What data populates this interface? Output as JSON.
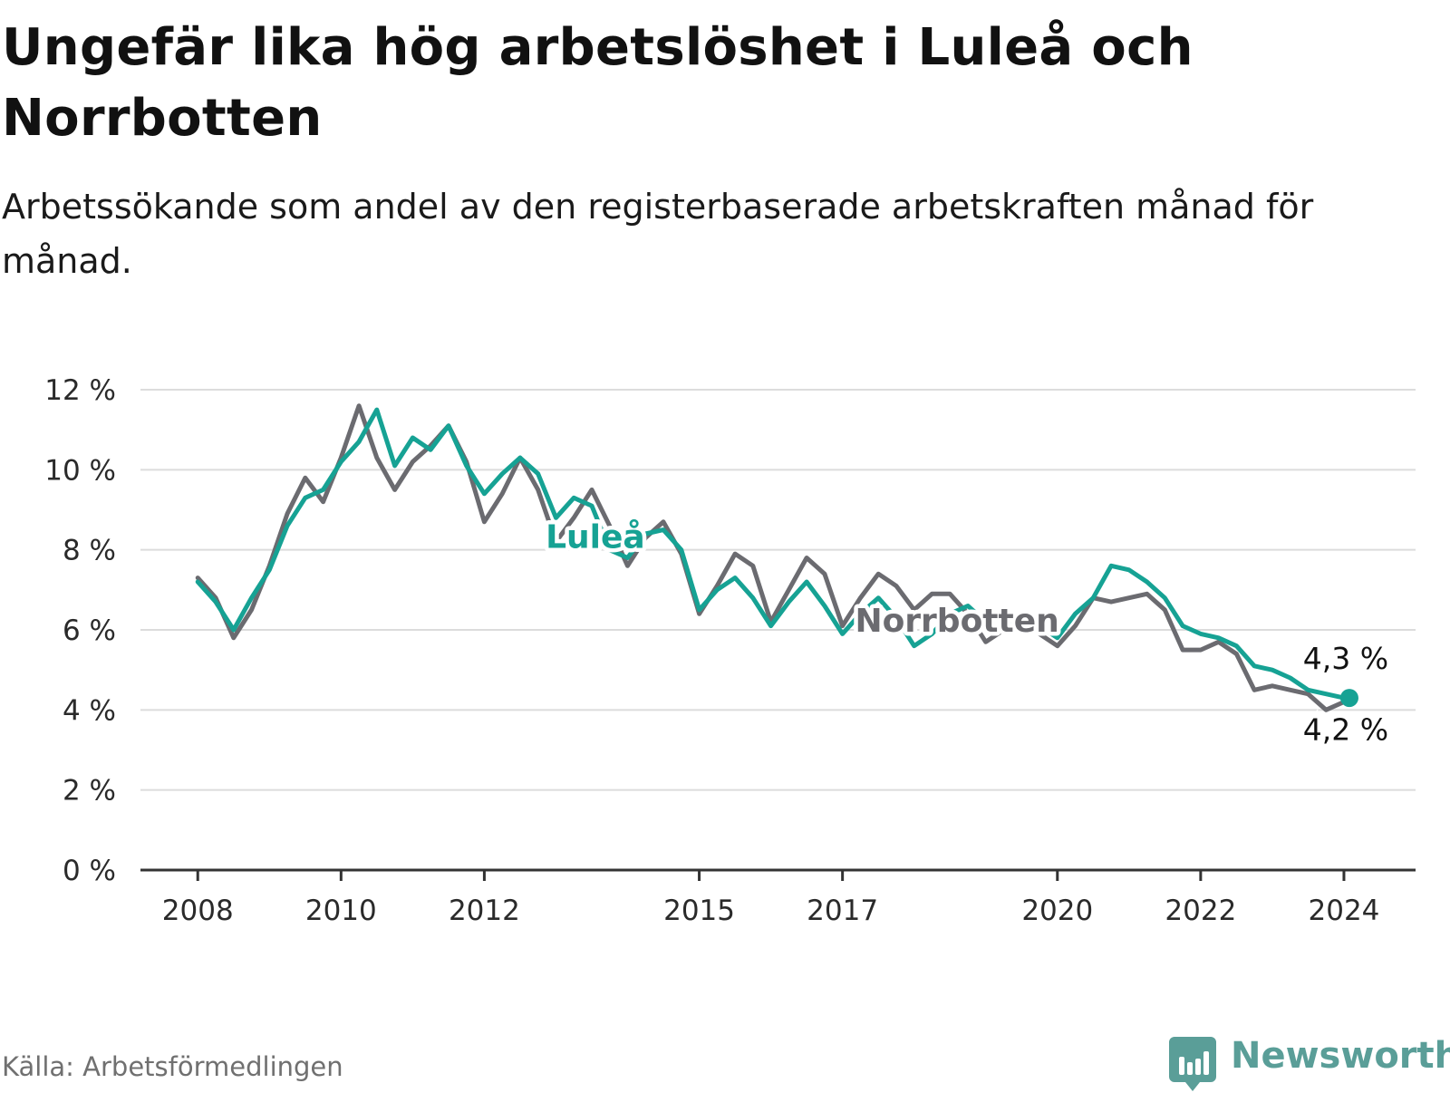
{
  "title": "Ungefär lika hög arbetslöshet i Luleå och Norrbotten",
  "subtitle": "Arbetssökande som andel av den registerbaserade arbetskraften månad för månad.",
  "source": "Källa: Arbetsförmedlingen",
  "brand": "Newsworthy",
  "colors": {
    "lulea": "#16a294",
    "norrbotten": "#6b6b70",
    "grid": "#dcdcdc",
    "axis": "#333333"
  },
  "chart_data": {
    "type": "line",
    "title": "Ungefär lika hög arbetslöshet i Luleå och Norrbotten",
    "xlabel": "",
    "ylabel": "",
    "ylim": [
      0,
      12
    ],
    "xlim": [
      2007.2,
      2025.0
    ],
    "y_ticks": [
      0,
      2,
      4,
      6,
      8,
      10,
      12
    ],
    "y_tick_labels": [
      "0 %",
      "2 %",
      "4 %",
      "6 %",
      "8 %",
      "10 %",
      "12 %"
    ],
    "x_ticks": [
      2008,
      2010,
      2012,
      2015,
      2017,
      2020,
      2022,
      2024
    ],
    "x_tick_labels": [
      "2008",
      "2010",
      "2012",
      "2015",
      "2017",
      "2020",
      "2022",
      "2024"
    ],
    "x": [
      2008.0,
      2008.25,
      2008.5,
      2008.75,
      2009.0,
      2009.25,
      2009.5,
      2009.75,
      2010.0,
      2010.25,
      2010.5,
      2010.75,
      2011.0,
      2011.25,
      2011.5,
      2011.75,
      2012.0,
      2012.25,
      2012.5,
      2012.75,
      2013.0,
      2013.25,
      2013.5,
      2013.75,
      2014.0,
      2014.25,
      2014.5,
      2014.75,
      2015.0,
      2015.25,
      2015.5,
      2015.75,
      2016.0,
      2016.25,
      2016.5,
      2016.75,
      2017.0,
      2017.25,
      2017.5,
      2017.75,
      2018.0,
      2018.25,
      2018.5,
      2018.75,
      2019.0,
      2019.25,
      2019.5,
      2019.75,
      2020.0,
      2020.25,
      2020.5,
      2020.75,
      2021.0,
      2021.25,
      2021.5,
      2021.75,
      2022.0,
      2022.25,
      2022.5,
      2022.75,
      2023.0,
      2023.25,
      2023.5,
      2023.75,
      2024.0
    ],
    "series": [
      {
        "name": "Luleå",
        "values": [
          7.2,
          6.7,
          6.0,
          6.8,
          7.5,
          8.6,
          9.3,
          9.5,
          10.2,
          10.7,
          11.5,
          10.1,
          10.8,
          10.5,
          11.1,
          10.1,
          9.4,
          9.9,
          10.3,
          9.9,
          8.8,
          9.3,
          9.1,
          8.0,
          7.8,
          8.4,
          8.5,
          8.0,
          6.5,
          7.0,
          7.3,
          6.8,
          6.1,
          6.7,
          7.2,
          6.6,
          5.9,
          6.4,
          6.8,
          6.3,
          5.6,
          5.9,
          6.4,
          6.6,
          6.2,
          6.0,
          6.4,
          6.1,
          5.8,
          6.4,
          6.8,
          7.6,
          7.5,
          7.2,
          6.8,
          6.1,
          5.9,
          5.8,
          5.6,
          5.1,
          5.0,
          4.8,
          4.5,
          4.4,
          4.3
        ]
      },
      {
        "name": "Norrbotten",
        "values": [
          7.3,
          6.8,
          5.8,
          6.5,
          7.6,
          8.9,
          9.8,
          9.2,
          10.3,
          11.6,
          10.3,
          9.5,
          10.2,
          10.6,
          11.1,
          10.2,
          8.7,
          9.4,
          10.3,
          9.5,
          8.2,
          8.8,
          9.5,
          8.6,
          7.6,
          8.3,
          8.7,
          7.9,
          6.4,
          7.1,
          7.9,
          7.6,
          6.2,
          7.0,
          7.8,
          7.4,
          6.1,
          6.8,
          7.4,
          7.1,
          6.5,
          6.9,
          6.9,
          6.4,
          5.7,
          6.0,
          6.4,
          5.9,
          5.6,
          6.1,
          6.8,
          6.7,
          6.8,
          6.9,
          6.5,
          5.5,
          5.5,
          5.7,
          5.4,
          4.5,
          4.6,
          4.5,
          4.4,
          4.0,
          4.2
        ]
      }
    ],
    "line_labels": [
      {
        "series": "Luleå",
        "text": "Luleå"
      },
      {
        "series": "Norrbotten",
        "text": "Norrbotten"
      }
    ],
    "end_labels": [
      {
        "series": "Luleå",
        "text": "4,3 %"
      },
      {
        "series": "Norrbotten",
        "text": "4,2 %"
      }
    ]
  }
}
